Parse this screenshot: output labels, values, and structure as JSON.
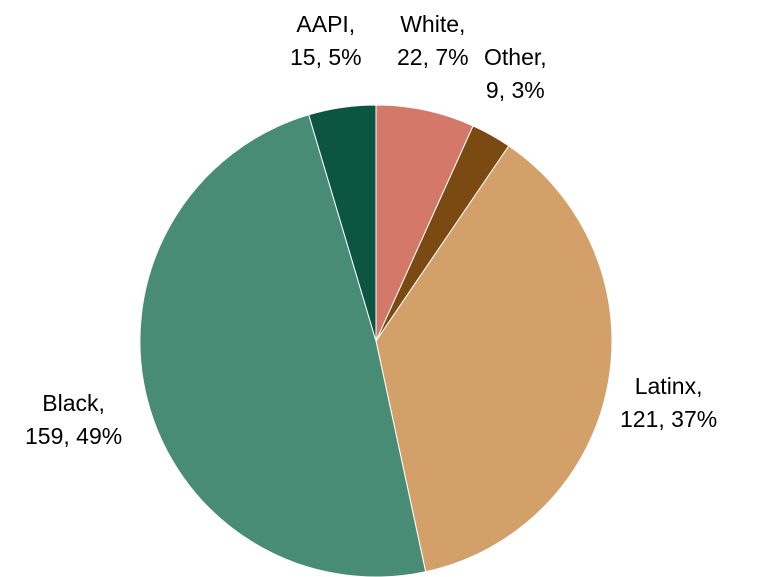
{
  "chart_data": {
    "type": "pie",
    "start_angle_deg": 0,
    "direction": "clockwise",
    "slices": [
      {
        "name": "White",
        "value": 22,
        "percent": "7%",
        "color": "#D4796A",
        "line1": "White,",
        "line2": "22, 7%"
      },
      {
        "name": "Other",
        "value": 9,
        "percent": "3%",
        "color": "#7B4A12",
        "line1": "Other,",
        "line2": "9, 3%"
      },
      {
        "name": "Latinx",
        "value": 121,
        "percent": "37%",
        "color": "#D4A06A",
        "line1": "Latinx,",
        "line2": "121, 37%"
      },
      {
        "name": "Black",
        "value": 159,
        "percent": "49%",
        "color": "#488C75",
        "line1": "Black,",
        "line2": "159, 49%"
      },
      {
        "name": "AAPI",
        "value": 15,
        "percent": "5%",
        "color": "#0C5540",
        "line1": "AAPI,",
        "line2": "15, 5%"
      }
    ]
  }
}
